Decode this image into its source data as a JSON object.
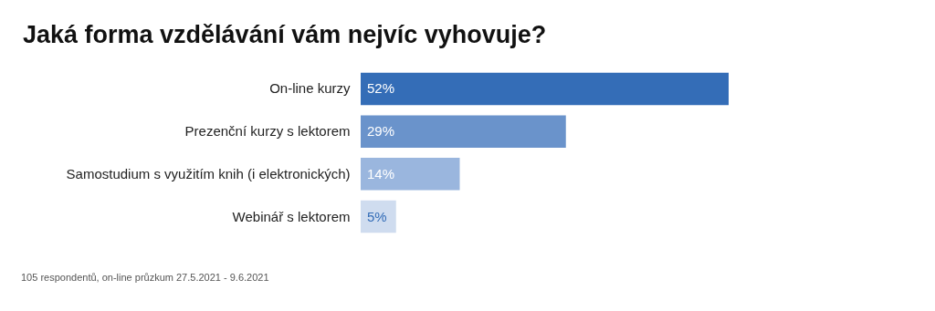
{
  "chart_data": {
    "type": "bar",
    "orientation": "horizontal",
    "title": "Jaká forma vzdělávání vám nejvíc vyhovuje?",
    "categories": [
      "On-line kurzy",
      "Prezenční kurzy s lektorem",
      "Samostudium s využitím knih (i elektronických)",
      "Webinář s lektorem"
    ],
    "values": [
      52,
      29,
      14,
      5
    ],
    "value_labels": [
      "52%",
      "29%",
      "14%",
      "5%"
    ],
    "colors": [
      "#346db7",
      "#6a93cb",
      "#9ab6de",
      "#cfdcef"
    ],
    "grid": false,
    "annotations": [
      "105 respondentů, on-line průzkum 27.5.2021 - 9.6.2021"
    ]
  }
}
